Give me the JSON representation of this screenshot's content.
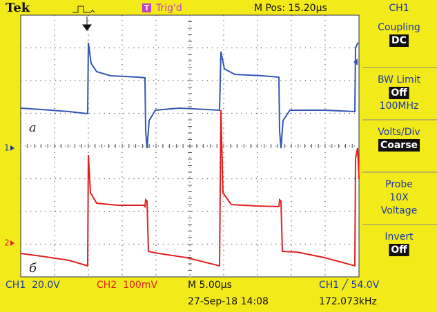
{
  "header": {
    "brand": "Tek",
    "trigger_icon": "T",
    "trigger_status": "Trig'd",
    "position": "M Pos: 15.20µs"
  },
  "menu": {
    "title": "CH1",
    "items": [
      {
        "label": "Coupling",
        "value": "DC"
      },
      {
        "label": "BW Limit",
        "value": "Off",
        "lines": [
          "100MHz"
        ]
      },
      {
        "label": "Volts/Div",
        "value": "Coarse"
      },
      {
        "label": "Probe",
        "lines": [
          "10X",
          "Voltage"
        ]
      },
      {
        "label": "Invert",
        "value": "Off"
      }
    ]
  },
  "screen": {
    "trace_labels": [
      "а",
      "б"
    ],
    "markers": [
      "1",
      "2"
    ]
  },
  "footer": {
    "ch1_scale": "CH1  20.0V",
    "ch2_scale": "CH2  100mV",
    "timebase": "M 5.00µs",
    "trigger": "CH1 ╱ 54.0V",
    "datetime": "27-Sep-18 14:08",
    "frequency": "172.073kHz"
  }
}
